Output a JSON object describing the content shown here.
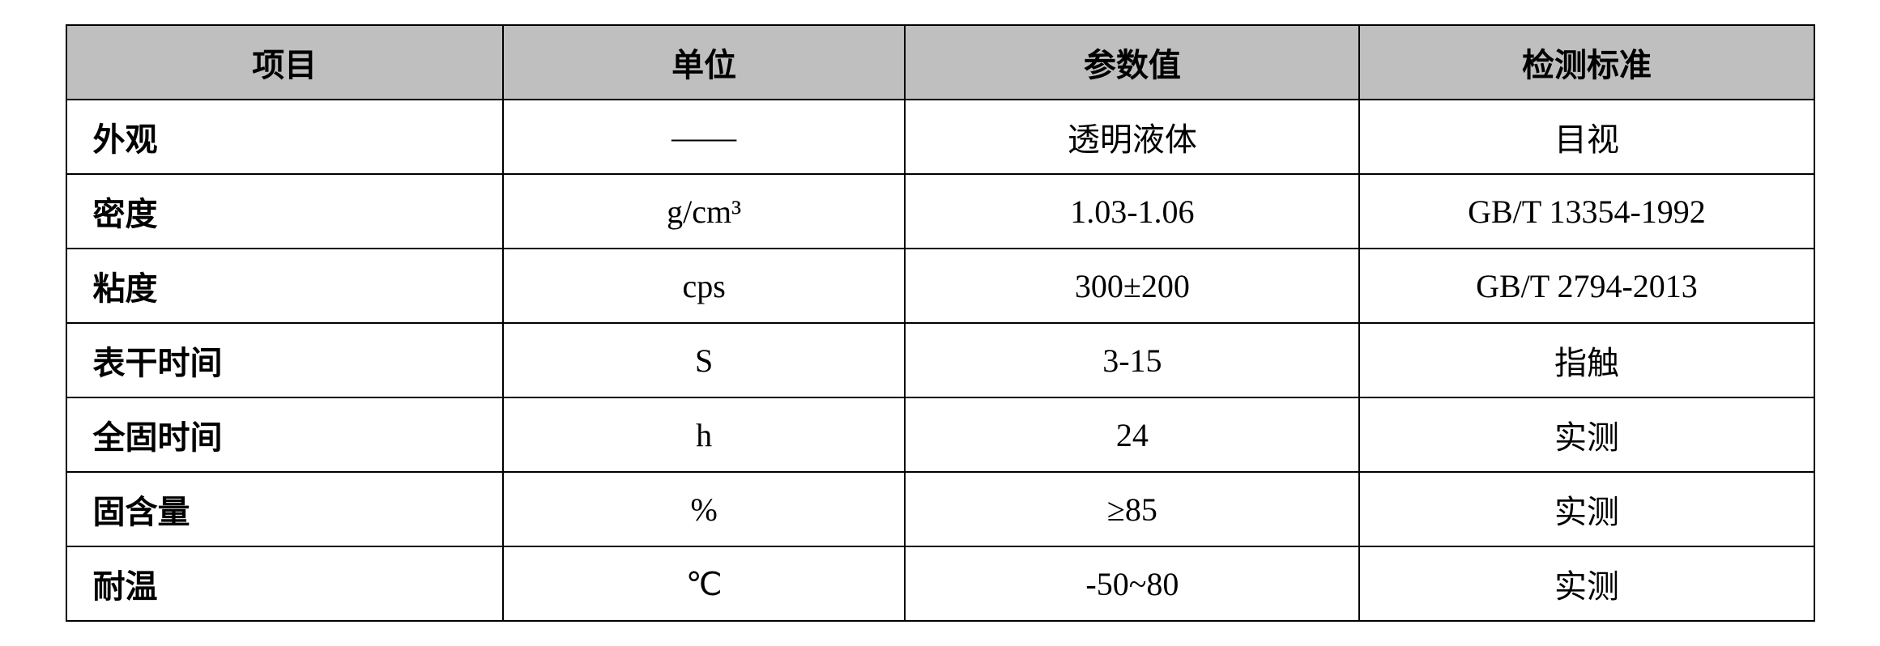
{
  "table": {
    "background_color": "#ffffff",
    "header_bg_color": "#bfbfbf",
    "border_color": "#000000",
    "border_width": 2,
    "font_family": "SimSun",
    "header_fontsize": 40,
    "cell_fontsize": 40,
    "columns": [
      {
        "label": "项目",
        "width": "25%",
        "align": "center"
      },
      {
        "label": "单位",
        "width": "23%",
        "align": "center"
      },
      {
        "label": "参数值",
        "width": "26%",
        "align": "center"
      },
      {
        "label": "检测标准",
        "width": "26%",
        "align": "center"
      }
    ],
    "rows": [
      {
        "item": "外观",
        "unit": "——",
        "value": "透明液体",
        "standard": "目视"
      },
      {
        "item": "密度",
        "unit": "g/cm³",
        "value": "1.03-1.06",
        "standard": "GB/T 13354-1992"
      },
      {
        "item": "粘度",
        "unit": "cps",
        "value": "300±200",
        "standard": "GB/T 2794-2013"
      },
      {
        "item": "表干时间",
        "unit": "S",
        "value": "3-15",
        "standard": "指触"
      },
      {
        "item": "全固时间",
        "unit": "h",
        "value": "24",
        "standard": "实测"
      },
      {
        "item": "固含量",
        "unit": "%",
        "value": "≥85",
        "standard": "实测"
      },
      {
        "item": "耐温",
        "unit": "℃",
        "value": "-50~80",
        "standard": "实测"
      }
    ]
  }
}
